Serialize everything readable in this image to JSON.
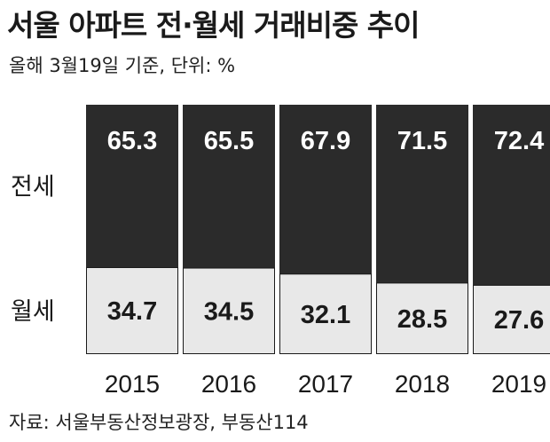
{
  "title": "서울 아파트 전·월세 거래비중 추이",
  "subtitle": "올해 3월19일 기준, 단위: %",
  "source": "자료: 서울부동산정보광장, 부동산114",
  "colors": {
    "jeonse": "#2b2b2b",
    "wolse": "#e8e8e8",
    "outline": "#1a1a1a"
  },
  "chart_data": {
    "type": "bar",
    "stacked": true,
    "normalized": true,
    "categories": [
      "2015",
      "2016",
      "2017",
      "2018",
      "2019"
    ],
    "series": [
      {
        "name": "전세",
        "values": [
          65.3,
          65.5,
          67.9,
          71.5,
          72.4
        ]
      },
      {
        "name": "월세",
        "values": [
          34.7,
          34.5,
          32.1,
          28.5,
          27.6
        ]
      }
    ],
    "ylim": [
      0,
      100
    ],
    "grid": false,
    "legend": "left"
  }
}
